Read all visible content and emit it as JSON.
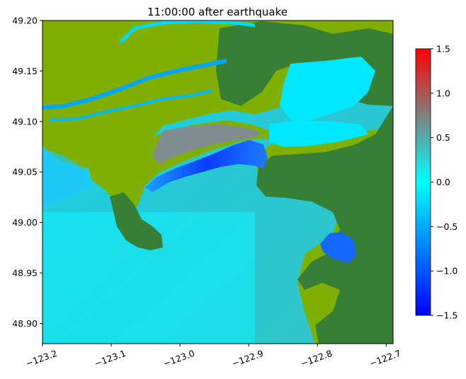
{
  "chart_data": {
    "type": "heatmap",
    "title": "11:00:00 after earthquake",
    "xlabel": "",
    "ylabel": "",
    "xlim": [
      -123.2,
      -122.69
    ],
    "ylim": [
      48.88,
      49.2
    ],
    "x_ticks": [
      "−123.2",
      "−123.1",
      "−123.0",
      "−122.9",
      "−122.8",
      "−122.7"
    ],
    "x_tick_values": [
      -123.2,
      -123.1,
      -123.0,
      -122.9,
      -122.8,
      -122.7
    ],
    "y_ticks": [
      "49.20",
      "49.15",
      "49.10",
      "49.05",
      "49.00",
      "48.95",
      "48.90"
    ],
    "y_tick_values": [
      49.2,
      49.15,
      49.1,
      49.05,
      49.0,
      48.95,
      48.9
    ],
    "colorbar": {
      "range": [
        -1.5,
        1.5
      ],
      "ticks": [
        "1.5",
        "1.0",
        "0.5",
        "0.0",
        "−0.5",
        "−1.0",
        "−1.5"
      ],
      "tick_values": [
        1.5,
        1.0,
        0.5,
        0.0,
        -0.5,
        -1.0,
        -1.5
      ],
      "colors": [
        "#0000ff",
        "#00ffff",
        "#808080",
        "#ff0000"
      ]
    },
    "land_colors": {
      "lowland": "#7fb000",
      "highland": "#367f34"
    }
  }
}
